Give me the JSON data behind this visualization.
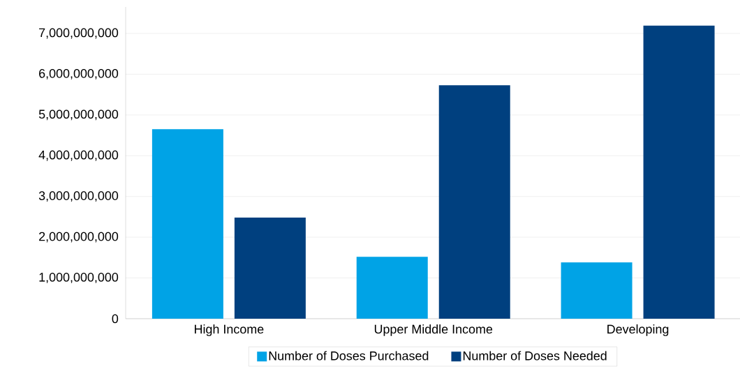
{
  "chart_data": {
    "type": "bar",
    "categories": [
      "High Income",
      "Upper Middle Income",
      "Developing"
    ],
    "series": [
      {
        "name": "Number of Doses Purchased",
        "color": "#00a3e6",
        "values": [
          4650000000,
          1520000000,
          1380000000
        ]
      },
      {
        "name": "Number of Doses Needed",
        "color": "#00407f",
        "values": [
          2480000000,
          5730000000,
          7190000000
        ]
      }
    ],
    "ylim": [
      0,
      7650000000
    ],
    "yticks": [
      0,
      {
        "value": 1000000000,
        "label": "1,000,000,000"
      },
      {
        "value": 2000000000,
        "label": "2,000,000,000"
      },
      {
        "value": 3000000000,
        "label": "3,000,000,000"
      },
      {
        "value": 4000000000,
        "label": "4,000,000,000"
      },
      {
        "value": 5000000000,
        "label": "5,000,000,000"
      },
      {
        "value": 6000000000,
        "label": "6,000,000,000"
      },
      {
        "value": 7000000000,
        "label": "7,000,000,000"
      }
    ],
    "grid": "y",
    "legend": "bottom"
  }
}
